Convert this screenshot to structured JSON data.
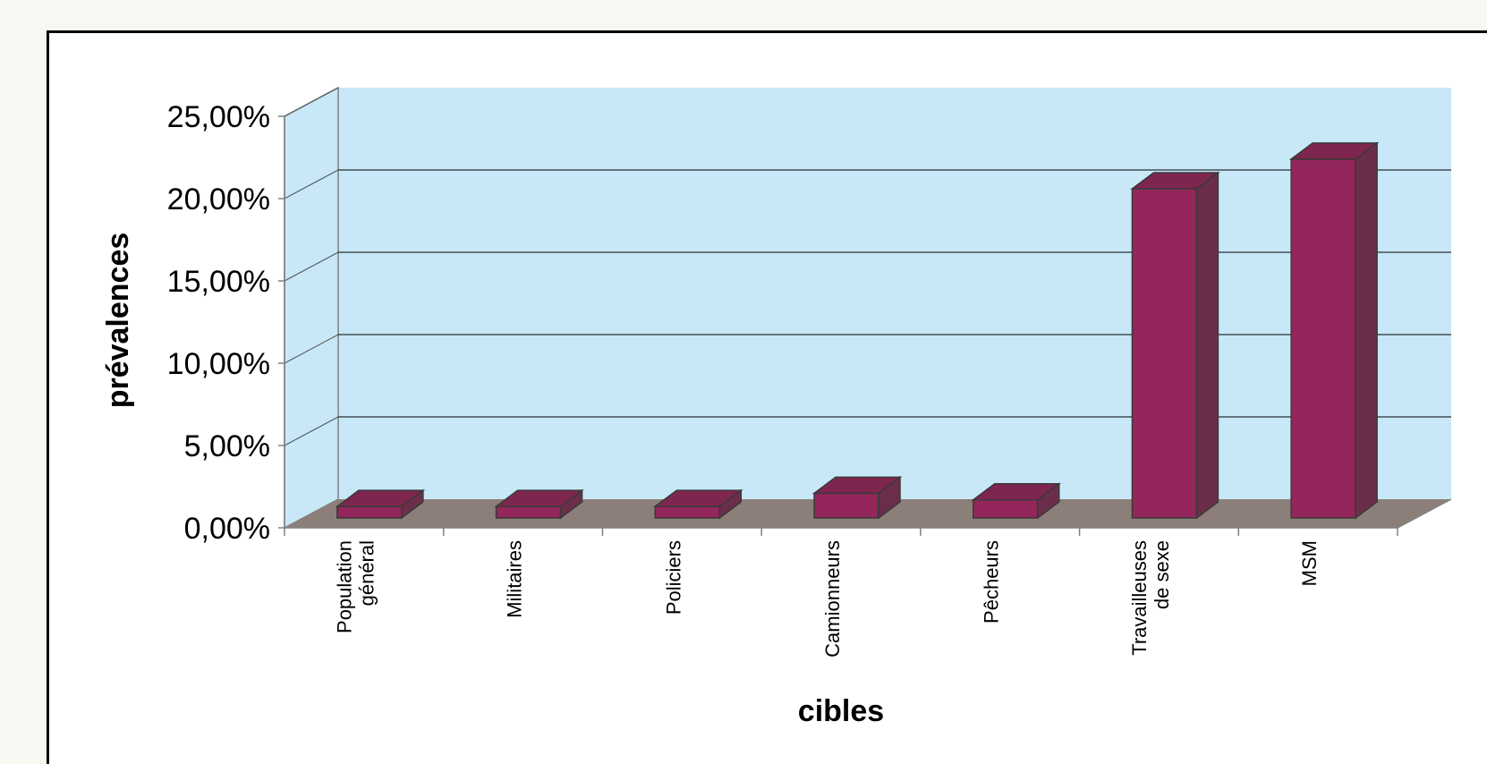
{
  "chart_data": {
    "type": "bar",
    "title": "",
    "xlabel": "cibles",
    "ylabel": "prévalences",
    "categories": [
      [
        "Population",
        "général"
      ],
      [
        "Militaires"
      ],
      [
        "Policiers"
      ],
      [
        "Camionneurs"
      ],
      [
        "Pêcheurs"
      ],
      [
        "Travailleuses",
        "de sexe"
      ],
      [
        "MSM"
      ]
    ],
    "values": [
      0.7,
      0.7,
      0.7,
      1.5,
      1.1,
      20.0,
      21.8
    ],
    "ylim": [
      0,
      25
    ],
    "yticks": [
      "0,00%",
      "5,00%",
      "10,00%",
      "15,00%",
      "20,00%",
      "25,00%"
    ],
    "grid": true,
    "legend": "none",
    "colors": {
      "wall": "#c8e8f8",
      "floor": "#8c7f7a",
      "bar_front": "#93265a",
      "bar_top": "#7e2550",
      "bar_side": "#6b2e4a",
      "outline": "#3a3a3a",
      "gridline": "#000000"
    }
  }
}
